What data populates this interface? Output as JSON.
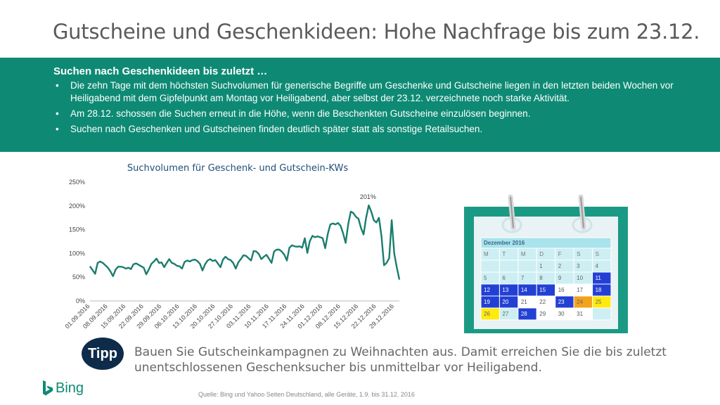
{
  "title": "Gutscheine und Geschenkideen: Hohe Nachfrage bis zum 23.12.",
  "band": {
    "heading": "Suchen nach Geschenkideen bis zuletzt …",
    "bullets": [
      "Die zehn Tage mit dem höchsten Suchvolumen für generische Begriffe um Geschenke und Gutscheine liegen in den letzten beiden Wochen vor Heiligabend mit dem Gipfelpunkt am Montag vor Heiligabend, aber selbst der 23.12. verzeichnete noch starke Aktivität.",
      "Am 28.12. schossen die Suchen erneut in die Höhe, wenn die Beschenkten Gutscheine einzulösen beginnen.",
      "Suchen nach Geschenken und Gutscheinen finden deutlich später statt als sonstige Retailsuchen."
    ]
  },
  "chart_data": {
    "type": "line",
    "title": "Suchvolumen für Geschenk- und Gutschein-KWs",
    "yticks": [
      "0%",
      "50%",
      "100%",
      "150%",
      "200%",
      "250%"
    ],
    "ylim": [
      0,
      250
    ],
    "xticks": [
      "01.09.2016",
      "08.09.2016",
      "15.09.2016",
      "22.09.2016",
      "29.09.2016",
      "06.10.2016",
      "13.10.2016",
      "20.10.2016",
      "27.10.2016",
      "03.11.2016",
      "10.11.2016",
      "17.11.2016",
      "24.11.2016",
      "01.12.2016",
      "08.12.2016",
      "15.12.2016",
      "22.12.2016",
      "29.12.2016"
    ],
    "series": [
      {
        "color": "#1a7d6e",
        "values": [
          73,
          65,
          57,
          80,
          83,
          80,
          75,
          70,
          62,
          52,
          66,
          72,
          72,
          71,
          68,
          70,
          67,
          77,
          79,
          76,
          73,
          70,
          56,
          66,
          78,
          83,
          89,
          80,
          81,
          71,
          80,
          88,
          80,
          78,
          74,
          73,
          68,
          82,
          85,
          83,
          86,
          87,
          84,
          78,
          64,
          77,
          85,
          88,
          84,
          86,
          79,
          71,
          87,
          93,
          88,
          86,
          80,
          68,
          81,
          88,
          96,
          95,
          90,
          85,
          105,
          104,
          99,
          88,
          93,
          97,
          89,
          80,
          104,
          108,
          108,
          104,
          97,
          85,
          112,
          117,
          115,
          114,
          115,
          112,
          132,
          101,
          126,
          137,
          134,
          136,
          134,
          132,
          111,
          141,
          161,
          163,
          161,
          164,
          158,
          142,
          122,
          162,
          188,
          185,
          177,
          173,
          153,
          140,
          175,
          201,
          188,
          170,
          165,
          175,
          137,
          75,
          80,
          90,
          170,
          100,
          70,
          45
        ]
      }
    ],
    "annotation": "201%"
  },
  "calendar": {
    "header": "Dezember 2016",
    "weekdays": [
      "M",
      "T",
      "M",
      "D",
      "F",
      "S",
      "S"
    ],
    "weeks": [
      [
        "",
        "",
        "",
        "1",
        "2",
        "3",
        "4"
      ],
      [
        "5",
        "6",
        "7",
        "8",
        "9",
        "10",
        "11"
      ],
      [
        "12",
        "13",
        "14",
        "15",
        "16",
        "17",
        "18"
      ],
      [
        "19",
        "20",
        "21",
        "22",
        "23",
        "24",
        "25"
      ],
      [
        "26",
        "27",
        "28",
        "29",
        "30",
        "31",
        ""
      ]
    ],
    "colors": {
      "frame": "#1a9a85",
      "blue": "#2340d4",
      "orange": "#f3a31a",
      "yellow": "#ffea10",
      "light": "#cdeff3",
      "head": "#a9e3eb"
    }
  },
  "tipp": {
    "badge": "Tipp",
    "text1": "Bauen Sie Gutscheinkampagnen zu Weihnachten aus. Damit erreichen Sie die bis zuletzt",
    "text2": "unentschlossenen Geschenksucher bis unmittelbar vor Heiligabend."
  },
  "brand": "Bing",
  "source": "Quelle: Bing und Yahoo Seiten Deutschland, alle Geräte, 1.9. bis 31.12. 2016"
}
